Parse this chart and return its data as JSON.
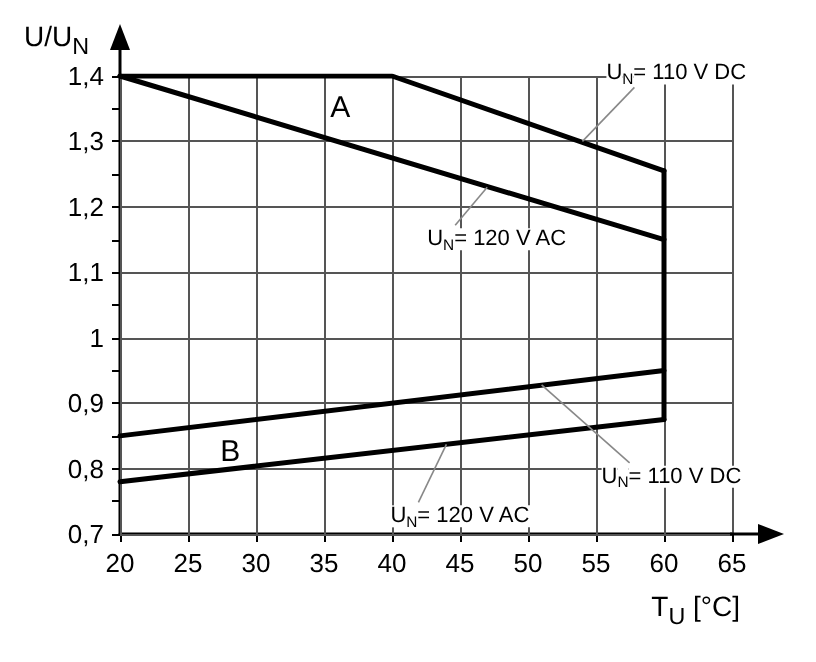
{
  "chart_data": {
    "type": "line",
    "xlabel": "T$_{U}$ [°C]",
    "ylabel": "U/U$_{N}$",
    "xlim": [
      20,
      65
    ],
    "xticks": [
      20,
      25,
      30,
      35,
      40,
      45,
      50,
      55,
      60,
      65
    ],
    "ylim": [
      0.7,
      1.4
    ],
    "yticks": [
      {
        "value": 0.7,
        "label": "0,7"
      },
      {
        "value": 0.75,
        "label": null
      },
      {
        "value": 0.8,
        "label": "0,8"
      },
      {
        "value": 0.85,
        "label": null
      },
      {
        "value": 0.9,
        "label": "0,9"
      },
      {
        "value": 0.95,
        "label": null
      },
      {
        "value": 1,
        "label": "1"
      },
      {
        "value": 1.05,
        "label": null
      },
      {
        "value": 1.1,
        "label": "1,1"
      },
      {
        "value": 1.15,
        "label": null
      },
      {
        "value": 1.2,
        "label": "1,2"
      },
      {
        "value": 1.25,
        "label": null
      },
      {
        "value": 1.3,
        "label": "1,3"
      },
      {
        "value": 1.35,
        "label": null
      },
      {
        "value": 1.4,
        "label": "1,4"
      }
    ],
    "grid": true,
    "marker": "none",
    "line_style": "solid",
    "series": [
      {
        "color": "#000000",
        "x": [
          20,
          40,
          60
        ],
        "values": [
          1.4,
          1.4,
          1.255
        ]
      },
      {
        "color": "#000000",
        "x": [
          20,
          60
        ],
        "values": [
          1.4,
          1.15
        ]
      },
      {
        "color": "#000000",
        "x": [
          60,
          60
        ],
        "values": [
          1.255,
          0.875
        ]
      },
      {
        "color": "#000000",
        "x": [
          20,
          60
        ],
        "values": [
          0.85,
          0.95
        ]
      },
      {
        "color": "#000000",
        "x": [
          20,
          60
        ],
        "values": [
          0.78,
          0.875
        ]
      }
    ],
    "annotations": [
      {
        "text": "U$_{N}$= 110 V DC",
        "x": 54,
        "y": 1.3
      },
      {
        "text": "U$_{N}$= 120 V AC",
        "x": 47,
        "y": 1.23
      },
      {
        "text": "U$_{N}$= 120 V AC",
        "x": 44,
        "y": 0.837
      },
      {
        "text": "U$_{N}$= 110 V DC",
        "x": 51,
        "y": 0.928
      },
      "A",
      "B"
    ]
  }
}
